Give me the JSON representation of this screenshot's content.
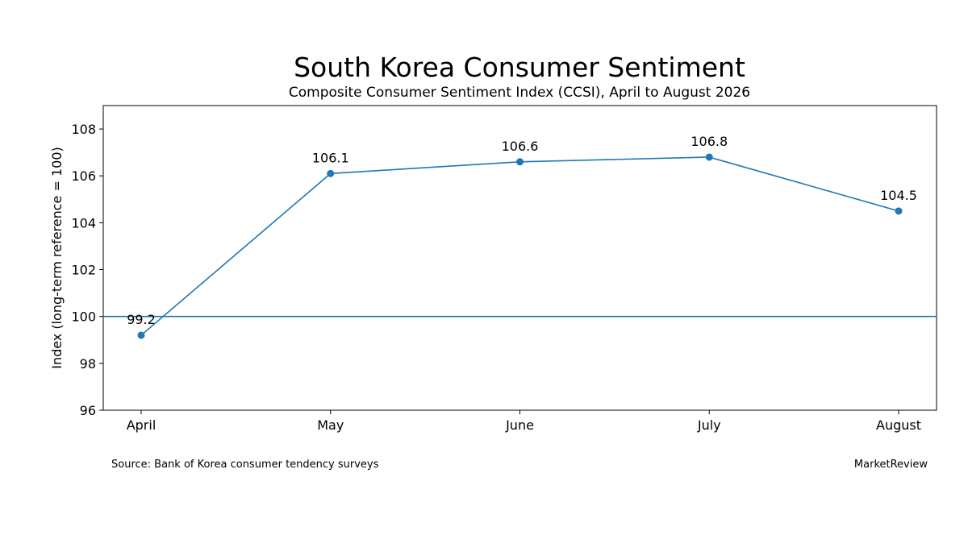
{
  "chart_data": {
    "type": "line",
    "title": "South Korea Consumer Sentiment",
    "subtitle": "Composite Consumer Sentiment Index (CCSI), April to August 2026",
    "xlabel": "",
    "ylabel": "Index (long-term reference = 100)",
    "categories": [
      "April",
      "May",
      "June",
      "July",
      "August"
    ],
    "series": [
      {
        "values": [
          99.2,
          106.1,
          106.6,
          106.8,
          104.5
        ],
        "data_labels": [
          "99.2",
          "106.1",
          "106.6",
          "106.8",
          "104.5"
        ],
        "color": "#1f77b4"
      }
    ],
    "reference_line": {
      "value": 100,
      "color": "#1f77b4"
    },
    "ylim": [
      96,
      109
    ],
    "yticks": [
      96,
      98,
      100,
      102,
      104,
      106,
      108
    ],
    "ytick_labels": [
      "96",
      "98",
      "100",
      "102",
      "104",
      "106",
      "108"
    ],
    "grid": false,
    "legend": "none"
  },
  "footer": {
    "source": "Source: Bank of Korea consumer tendency surveys",
    "brand": "MarketReview"
  }
}
